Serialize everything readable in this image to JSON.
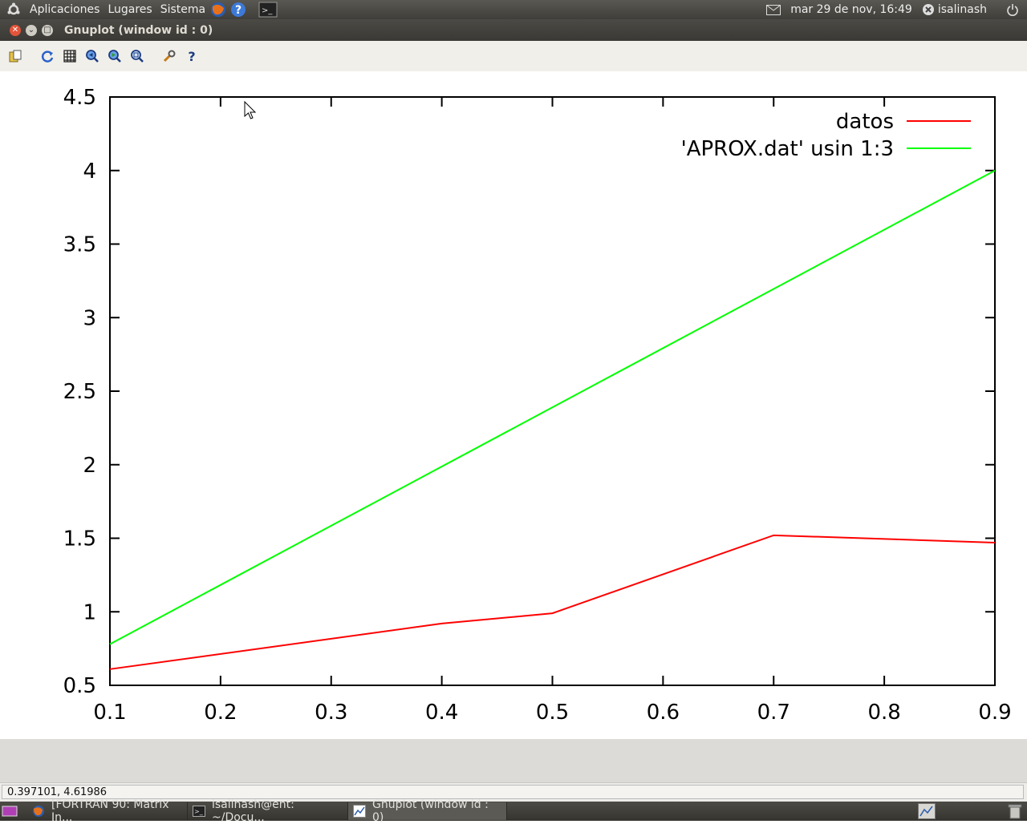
{
  "topbar": {
    "menus": [
      "Aplicaciones",
      "Lugares",
      "Sistema"
    ],
    "datetime": "mar 29 de nov, 16:49",
    "user": "isalinash"
  },
  "window": {
    "title": "Gnuplot (window id : 0)"
  },
  "toolbar": {
    "icons": [
      "copy-clipboard-icon",
      "replot-icon",
      "grid-icon",
      "zoom-prev-icon",
      "zoom-next-icon",
      "autoscale-icon",
      "options-icon",
      "help-icon"
    ]
  },
  "status": {
    "coordinates": "0.397101,  4.61986"
  },
  "taskbar": {
    "tasks": [
      "[FORTRAN 90: Matrix In...",
      "isalinash@ent: ~/Docu...",
      "Gnuplot (window id : 0)"
    ]
  },
  "chart_data": {
    "type": "line",
    "xlim": [
      0.1,
      0.9
    ],
    "ylim": [
      0.5,
      4.5
    ],
    "xticks": [
      "0.1",
      "0.2",
      "0.3",
      "0.4",
      "0.5",
      "0.6",
      "0.7",
      "0.8",
      "0.9"
    ],
    "yticks": [
      "0.5",
      "1",
      "1.5",
      "2",
      "2.5",
      "3",
      "3.5",
      "4",
      "4.5"
    ],
    "legend_position": "top-right",
    "series": [
      {
        "name": "datos",
        "color": "#ff0000",
        "x": [
          0.1,
          0.4,
          0.5,
          0.7,
          0.9
        ],
        "y": [
          0.61,
          0.92,
          0.99,
          1.52,
          1.47
        ]
      },
      {
        "name": "'APROX.dat' usin 1:3",
        "color": "#00ff00",
        "x": [
          0.1,
          0.9
        ],
        "y": [
          0.78,
          4.0
        ]
      }
    ]
  }
}
